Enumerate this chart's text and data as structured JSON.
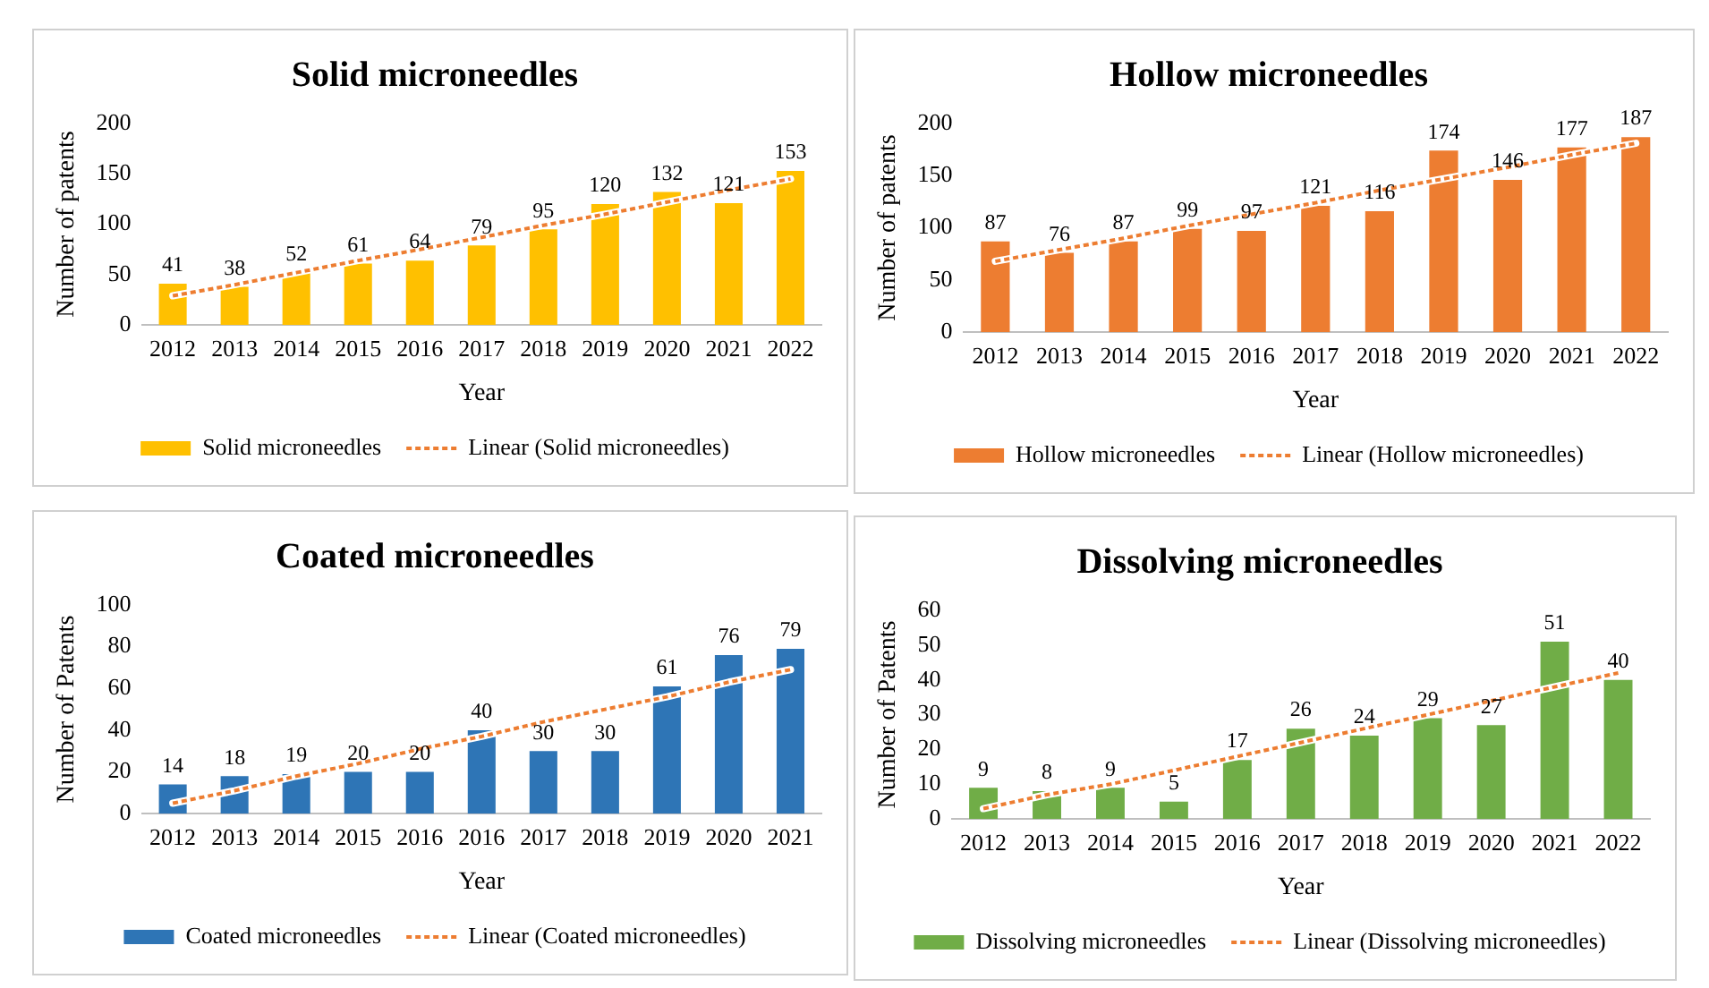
{
  "chart_data": [
    {
      "type": "bar",
      "title": "Solid microneedles",
      "xlabel": "Year",
      "ylabel": "Number of patents",
      "categories": [
        "2012",
        "2013",
        "2014",
        "2015",
        "2016",
        "2017",
        "2018",
        "2019",
        "2020",
        "2021",
        "2022"
      ],
      "ylim": [
        0,
        200
      ],
      "yticks": [
        0,
        50,
        100,
        150,
        200
      ],
      "legend": "bottom",
      "series": [
        {
          "name": "Solid microneedles",
          "color": "#ffc000",
          "values": [
            41,
            38,
            52,
            61,
            64,
            79,
            95,
            120,
            132,
            121,
            153
          ],
          "value_labels": [
            "41",
            "38",
            "52",
            "61",
            "64",
            "79",
            "95",
            "120",
            "132",
            "121",
            "153"
          ]
        },
        {
          "name": "Linear (Solid microneedles)",
          "type": "line",
          "color": "#ed7d31",
          "line_style": "dotted",
          "marker": "none",
          "values": [
            29,
            40,
            52,
            64,
            75,
            87,
            99,
            110,
            122,
            134,
            145
          ]
        }
      ]
    },
    {
      "type": "bar",
      "title": "Hollow microneedles",
      "xlabel": "Year",
      "ylabel": "Number of patents",
      "categories": [
        "2012",
        "2013",
        "2014",
        "2015",
        "2016",
        "2017",
        "2018",
        "2019",
        "2020",
        "2021",
        "2022"
      ],
      "ylim": [
        0,
        200
      ],
      "yticks": [
        0,
        50,
        100,
        150,
        200
      ],
      "legend": "bottom",
      "series": [
        {
          "name": "Hollow microneedles",
          "color": "#ed7d31",
          "values": [
            87,
            76,
            87,
            99,
            97,
            121,
            116,
            174,
            146,
            177,
            187
          ],
          "value_labels": [
            "87",
            "76",
            "87",
            "99",
            "97",
            "121",
            "116",
            "174",
            "146",
            "177",
            "187"
          ]
        },
        {
          "name": "Linear (Hollow microneedles)",
          "type": "line",
          "color": "#ed7d31",
          "line_style": "dotted",
          "marker": "none",
          "values": [
            68,
            79,
            90,
            102,
            113,
            124,
            136,
            147,
            158,
            170,
            181
          ]
        }
      ]
    },
    {
      "type": "bar",
      "title": "Coated microneedles",
      "xlabel": "Year",
      "ylabel": "Number of Patents",
      "categories": [
        "2012",
        "2013",
        "2014",
        "2015",
        "2016",
        "2016",
        "2017",
        "2018",
        "2019",
        "2020",
        "2021"
      ],
      "ylim": [
        0,
        100
      ],
      "yticks": [
        0,
        20,
        40,
        60,
        80,
        100
      ],
      "legend": "bottom",
      "series": [
        {
          "name": "Coated microneedles",
          "color": "#2e75b6",
          "values": [
            14,
            18,
            19,
            20,
            20,
            40,
            30,
            30,
            61,
            76,
            79
          ],
          "value_labels": [
            "14",
            "18",
            "19",
            "20",
            "20",
            "40",
            "30",
            "30",
            "61",
            "76",
            "79"
          ]
        },
        {
          "name": "Linear (Coated microneedles)",
          "type": "line",
          "color": "#ed7d31",
          "line_style": "dotted",
          "marker": "none",
          "values": [
            5,
            11,
            18,
            24,
            31,
            37,
            44,
            50,
            56,
            63,
            69
          ]
        }
      ]
    },
    {
      "type": "bar",
      "title": "Dissolving microneedles",
      "xlabel": "Year",
      "ylabel": "Number of Patents",
      "categories": [
        "2012",
        "2013",
        "2014",
        "2015",
        "2016",
        "2017",
        "2018",
        "2019",
        "2020",
        "2021",
        "2022"
      ],
      "ylim": [
        0,
        60
      ],
      "yticks": [
        0,
        10,
        20,
        30,
        40,
        50,
        60
      ],
      "legend": "bottom",
      "series": [
        {
          "name": "Dissolving microneedles",
          "color": "#70ad47",
          "values": [
            9,
            8,
            9,
            5,
            17,
            26,
            24,
            29,
            27,
            51,
            40
          ],
          "value_labels": [
            "9",
            "8",
            "9",
            "5",
            "17",
            "26",
            "24",
            "29",
            "27",
            "51",
            "40"
          ]
        },
        {
          "name": "Linear (Dissolving microneedles)",
          "type": "line",
          "color": "#ed7d31",
          "line_style": "dotted",
          "marker": "none",
          "values": [
            3,
            7,
            10,
            14,
            18,
            22,
            26,
            30,
            34,
            38,
            42
          ]
        }
      ]
    }
  ]
}
